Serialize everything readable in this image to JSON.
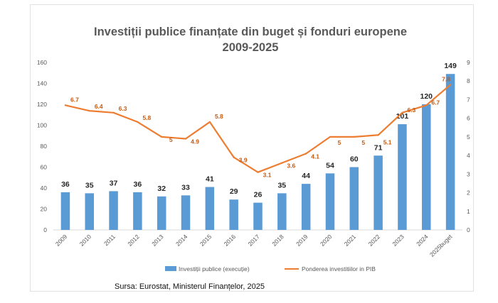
{
  "chart_data": {
    "type": "bar",
    "title": "Investiții publice finanțate din buget și fonduri europene",
    "subtitle": "2009-2025",
    "categories": [
      "2009",
      "2010",
      "2011",
      "2012",
      "2013",
      "2014",
      "2015",
      "2016",
      "2017",
      "2018",
      "2019",
      "2020",
      "2021",
      "2022",
      "2023",
      "2024",
      "2025buget"
    ],
    "series": [
      {
        "name": "Investiții publice (execuție)",
        "type": "bar",
        "axis": "left",
        "color": "#5b9bd5",
        "values": [
          36,
          35,
          37,
          36,
          32,
          33,
          41,
          29,
          26,
          35,
          44,
          54,
          60,
          71,
          101,
          120,
          149
        ]
      },
      {
        "name": "Ponderea investitiilor in PIB",
        "type": "line",
        "axis": "right",
        "color": "#ed7d31",
        "values": [
          6.7,
          6.4,
          6.3,
          5.8,
          5,
          4.9,
          5.8,
          3.9,
          3.1,
          3.6,
          4.1,
          5,
          5,
          5.1,
          6.3,
          6.7,
          7.8
        ]
      }
    ],
    "y_left": {
      "min": 0,
      "max": 160,
      "ticks": [
        "0",
        "20",
        "40",
        "60",
        "80",
        "100",
        "120",
        "140",
        "160"
      ]
    },
    "y_right": {
      "min": 0,
      "max": 9,
      "ticks": [
        "0",
        "1",
        "2",
        "3",
        "4",
        "5",
        "6",
        "7",
        "8",
        "9"
      ]
    },
    "legend_position": "bottom",
    "grid": false
  },
  "source": "Sursa: Eurostat, Ministerul Finanțelor, 2025"
}
